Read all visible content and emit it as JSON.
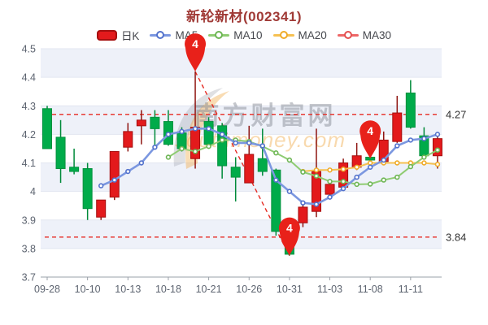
{
  "title": "新轮新材(002341)",
  "legend": {
    "items": [
      {
        "label": "日K",
        "type": "rect",
        "color": "#e31a1c",
        "border": "#a50f0f"
      },
      {
        "label": "MA5",
        "type": "line",
        "color": "#7b97e0",
        "dot": "#5372cc"
      },
      {
        "label": "MA10",
        "type": "line",
        "color": "#8fcc72",
        "dot": "#6db554"
      },
      {
        "label": "MA20",
        "type": "line",
        "color": "#f6c152",
        "dot": "#efab29"
      },
      {
        "label": "MA30",
        "type": "line",
        "color": "#ee6666",
        "dot": "#e34f4f"
      }
    ]
  },
  "watermark": {
    "text": "南方财富网",
    "subtext": "southmoney.com"
  },
  "chart_data": {
    "type": "candlestick",
    "title": "新轮新材(002341)",
    "ylim": [
      3.7,
      4.5
    ],
    "ytick_step": 0.1,
    "yticks": [
      "4.5",
      "4.4",
      "4.3",
      "4.2",
      "4.1",
      "4",
      "3.9",
      "3.8",
      "3.7"
    ],
    "xtick_labels": [
      "09-28",
      "10-10",
      "10-13",
      "10-18",
      "10-21",
      "10-26",
      "10-31",
      "11-03",
      "11-08",
      "11-11"
    ],
    "xtick_every": 3,
    "grid": true,
    "legend_position": "top",
    "candles": [
      {
        "date": "09-28",
        "open": 4.29,
        "high": 4.3,
        "low": 4.15,
        "close": 4.15
      },
      {
        "date": "09-29",
        "open": 4.19,
        "high": 4.25,
        "low": 4.03,
        "close": 4.08
      },
      {
        "date": "09-30",
        "open": 4.085,
        "high": 4.15,
        "low": 4.06,
        "close": 4.07
      },
      {
        "date": "10-10",
        "open": 4.08,
        "high": 4.1,
        "low": 3.9,
        "close": 3.94
      },
      {
        "date": "10-11",
        "open": 3.91,
        "high": 3.97,
        "low": 3.9,
        "close": 3.97
      },
      {
        "date": "10-12",
        "open": 3.98,
        "high": 4.14,
        "low": 3.97,
        "close": 4.14
      },
      {
        "date": "10-13",
        "open": 4.155,
        "high": 4.24,
        "low": 4.14,
        "close": 4.21
      },
      {
        "date": "10-14",
        "open": 4.23,
        "high": 4.285,
        "low": 4.165,
        "close": 4.25
      },
      {
        "date": "10-17",
        "open": 4.26,
        "high": 4.285,
        "low": 4.155,
        "close": 4.22
      },
      {
        "date": "10-18",
        "open": 4.245,
        "high": 4.285,
        "low": 4.16,
        "close": 4.165
      },
      {
        "date": "10-19",
        "open": 4.205,
        "high": 4.225,
        "low": 4.14,
        "close": 4.15
      },
      {
        "date": "10-20",
        "open": 4.115,
        "high": 4.42,
        "low": 4.08,
        "close": 4.225
      },
      {
        "date": "10-21",
        "open": 4.245,
        "high": 4.26,
        "low": 4.16,
        "close": 4.165
      },
      {
        "date": "10-24",
        "open": 4.23,
        "high": 4.24,
        "low": 4.045,
        "close": 4.09
      },
      {
        "date": "10-25",
        "open": 4.085,
        "high": 4.12,
        "low": 3.965,
        "close": 4.05
      },
      {
        "date": "10-26",
        "open": 4.03,
        "high": 4.23,
        "low": 4.03,
        "close": 4.13
      },
      {
        "date": "10-27",
        "open": 4.115,
        "high": 4.22,
        "low": 4.055,
        "close": 4.07
      },
      {
        "date": "10-28",
        "open": 4.075,
        "high": 4.08,
        "low": 3.845,
        "close": 3.86
      },
      {
        "date": "10-31",
        "open": 3.86,
        "high": 3.88,
        "low": 3.775,
        "close": 3.78
      },
      {
        "date": "11-01",
        "open": 3.89,
        "high": 3.955,
        "low": 3.875,
        "close": 3.945
      },
      {
        "date": "11-02",
        "open": 3.93,
        "high": 4.22,
        "low": 3.91,
        "close": 4.07
      },
      {
        "date": "11-03",
        "open": 3.99,
        "high": 4.04,
        "low": 3.98,
        "close": 4.025
      },
      {
        "date": "11-04",
        "open": 4.015,
        "high": 4.115,
        "low": 4.005,
        "close": 4.1
      },
      {
        "date": "11-07",
        "open": 4.085,
        "high": 4.17,
        "low": 4.075,
        "close": 4.125
      },
      {
        "date": "11-08",
        "open": 4.12,
        "high": 4.13,
        "low": 4.1,
        "close": 4.11
      },
      {
        "date": "11-09",
        "open": 4.105,
        "high": 4.21,
        "low": 4.1,
        "close": 4.18
      },
      {
        "date": "11-10",
        "open": 4.175,
        "high": 4.335,
        "low": 4.17,
        "close": 4.275
      },
      {
        "date": "11-11",
        "open": 4.345,
        "high": 4.39,
        "low": 4.22,
        "close": 4.225
      },
      {
        "date": "11-14",
        "open": 4.195,
        "high": 4.225,
        "low": 4.12,
        "close": 4.125
      },
      {
        "date": "11-15",
        "open": 4.125,
        "high": 4.2,
        "low": 4.08,
        "close": 4.185
      }
    ],
    "series": [
      {
        "name": "MA5",
        "start": 4,
        "values": [
          4.02,
          4.04,
          4.07,
          4.1,
          4.155,
          4.2,
          4.21,
          4.22,
          4.22,
          4.2,
          4.17,
          4.17,
          4.16,
          4.04,
          4.0,
          3.96,
          3.955,
          3.98,
          4.01,
          4.05,
          4.085,
          4.11,
          4.16,
          4.18,
          4.185,
          4.2
        ]
      },
      {
        "name": "MA10",
        "start": 9,
        "values": [
          4.12,
          4.15,
          4.14,
          4.158,
          4.18,
          4.18,
          4.175,
          4.158,
          4.135,
          4.11,
          4.068,
          4.054,
          4.035,
          4.035,
          4.025,
          4.026,
          4.04,
          4.05,
          4.087,
          4.12,
          4.145
        ]
      },
      {
        "name": "MA20",
        "start": 19,
        "values": [
          4.07,
          4.075,
          4.075,
          4.078,
          4.085,
          4.1,
          4.1,
          4.1,
          4.1,
          4.1,
          4.095
        ]
      },
      {
        "name": "MA30",
        "start": 29,
        "values": []
      }
    ],
    "hlines": [
      {
        "value": 4.27,
        "label": "4.27"
      },
      {
        "value": 3.84,
        "label": "3.84"
      }
    ],
    "trendline": {
      "from": {
        "date": "10-20",
        "price": 4.42
      },
      "to": {
        "date": "10-31",
        "price": 3.775
      }
    },
    "markers": [
      {
        "label": "4",
        "date": "10-20",
        "price": 4.42
      },
      {
        "label": "4",
        "date": "10-31",
        "price": 3.775
      },
      {
        "label": "4",
        "date": "11-08",
        "price": 4.115
      }
    ],
    "colors": {
      "up": "#e31a1c",
      "up_border": "#a50f0f",
      "up_wick": "#8f1511",
      "down": "#00ab4a",
      "down_border": "#00913d",
      "down_wick": "#008a3a",
      "ma5": "#7b97e0",
      "ma5_dot": "#5372cc",
      "ma10": "#8fcc72",
      "ma10_dot": "#6db554",
      "ma20": "#f6c152",
      "ma20_dot": "#efab29",
      "dashed": "#e62a22",
      "marker": "#e8211a",
      "band": "#eef1f9",
      "gridline": "#e2e6f0",
      "axis": "#9aa0a8",
      "tick_text": "#5d6470",
      "hline_label": "#333333"
    }
  }
}
